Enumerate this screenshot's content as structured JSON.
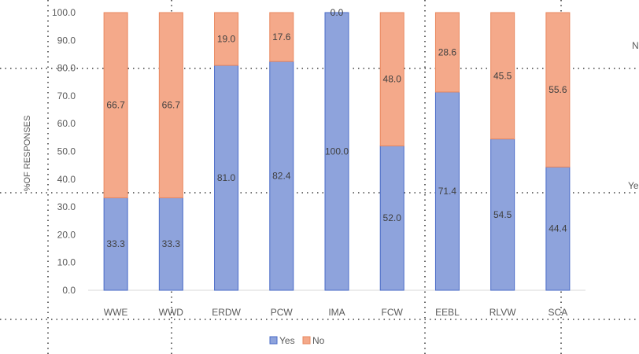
{
  "chart_data": {
    "type": "bar",
    "stacked": true,
    "categories": [
      "WWE",
      "WWD",
      "ERDW",
      "PCW",
      "IMA",
      "FCW",
      "EEBL",
      "RLVW",
      "SCA"
    ],
    "series": [
      {
        "name": "Yes",
        "values": [
          33.3,
          33.3,
          81.0,
          82.4,
          100.0,
          52.0,
          71.4,
          54.5,
          44.4
        ],
        "color": "#8EA3DC"
      },
      {
        "name": "No",
        "values": [
          66.7,
          66.7,
          19.0,
          17.6,
          0.0,
          48.0,
          28.6,
          45.5,
          55.6
        ],
        "color": "#F4A98A"
      }
    ],
    "data_labels": {
      "Yes": [
        "33.3",
        "33.3",
        "81.0",
        "82.4",
        "100.0",
        "52.0",
        "71.4",
        "54.5",
        "44.4"
      ],
      "No": [
        "66.7",
        "66.7",
        "19.0",
        "17.6",
        "0.0",
        "48.0",
        "28.6",
        "45.5",
        "55.6"
      ]
    },
    "ylabel": "%OF RESPONSES",
    "xlabel": "",
    "ylim": [
      0,
      100
    ],
    "yticks": [
      "0.0",
      "10.0",
      "20.0",
      "30.0",
      "40.0",
      "50.0",
      "60.0",
      "70.0",
      "80.0",
      "90.0",
      "100.0"
    ],
    "legend": {
      "position": "bottom",
      "entries": [
        "Yes",
        "No"
      ]
    },
    "side_labels": [
      "N",
      "Ye"
    ],
    "grid": false
  }
}
